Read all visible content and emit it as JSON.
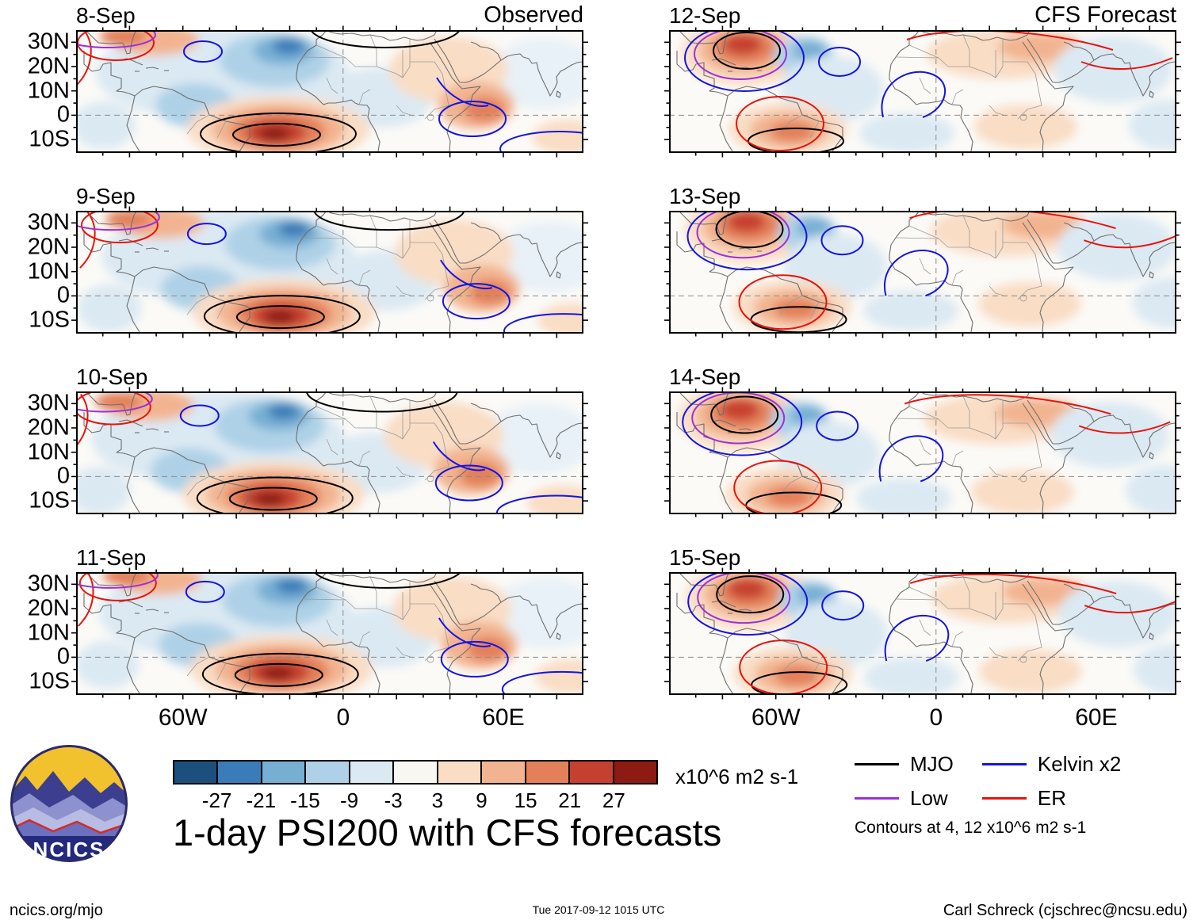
{
  "title": "1-day PSI200 with CFS forecasts",
  "columns": [
    {
      "title": "Observed",
      "panels": [
        {
          "date": "8-Sep"
        },
        {
          "date": "9-Sep"
        },
        {
          "date": "10-Sep"
        },
        {
          "date": "11-Sep"
        }
      ]
    },
    {
      "title": "CFS Forecast",
      "panels": [
        {
          "date": "12-Sep"
        },
        {
          "date": "13-Sep"
        },
        {
          "date": "14-Sep"
        },
        {
          "date": "15-Sep"
        }
      ]
    }
  ],
  "axes": {
    "y_ticks": [
      "30N",
      "20N",
      "10N",
      "0",
      "10S"
    ],
    "x_ticks": [
      "60W",
      "0",
      "60E"
    ]
  },
  "colorbar": {
    "tick_labels": [
      "-27",
      "-21",
      "-15",
      "-9",
      "-3",
      "3",
      "9",
      "15",
      "21",
      "27"
    ],
    "colors": [
      "#1d4f7c",
      "#3a7cb8",
      "#77afd3",
      "#aed1e7",
      "#dbe9f3",
      "#f9f7f2",
      "#f9ddc5",
      "#f2b490",
      "#e3805a",
      "#c6402f",
      "#8c1c13"
    ],
    "units": "x10^6 m2 s-1"
  },
  "legend": {
    "items": [
      {
        "label": "MJO",
        "color": "#000000"
      },
      {
        "label": "Low",
        "color": "#9b30d9"
      },
      {
        "label": "Kelvin x2",
        "color": "#1414e0"
      },
      {
        "label": "ER",
        "color": "#e8130c"
      }
    ],
    "note": "Contours at 4, 12 x10^6 m2 s-1"
  },
  "logo": {
    "text": "NCICS"
  },
  "footer": {
    "left": "ncics.org/mjo",
    "center": "Tue 2017-09-12 1015 UTC",
    "right": "Carl Schreck (cjschrec@ncsu.edu)"
  },
  "chart_data": {
    "type": "heatmap",
    "title": "1-day PSI200 with CFS forecasts",
    "layout": "2 columns x 4 rows of longitude-latitude map panels; left column observed, right column CFS forecast",
    "columns": [
      {
        "title": "Observed",
        "dates": [
          "8-Sep",
          "9-Sep",
          "10-Sep",
          "11-Sep"
        ]
      },
      {
        "title": "CFS Forecast",
        "dates": [
          "12-Sep",
          "13-Sep",
          "14-Sep",
          "15-Sep"
        ]
      }
    ],
    "x_axis": {
      "ticks": [
        "60W",
        "0",
        "60E"
      ],
      "approx_range_deg_lon": [
        -100,
        90
      ]
    },
    "y_axis": {
      "ticks": [
        "30N",
        "20N",
        "10N",
        "0",
        "10S"
      ],
      "approx_range_deg_lat": [
        -15,
        35
      ]
    },
    "fill_field": {
      "name": "PSI200 (200 hPa streamfunction) anomaly",
      "units": "x10^6 m2 s-1",
      "levels": [
        -27,
        -21,
        -15,
        -9,
        -3,
        3,
        9,
        15,
        21,
        27
      ],
      "palette": [
        "#1d4f7c",
        "#3a7cb8",
        "#77afd3",
        "#aed1e7",
        "#dbe9f3",
        "#f9f7f2",
        "#f9ddc5",
        "#f2b490",
        "#e3805a",
        "#c6402f",
        "#8c1c13"
      ]
    },
    "contour_overlays": [
      {
        "name": "MJO",
        "color": "black"
      },
      {
        "name": "Low",
        "color": "purple"
      },
      {
        "name": "Kelvin x2",
        "color": "blue"
      },
      {
        "name": "ER",
        "color": "red"
      }
    ],
    "contour_levels": "4, 12 x10^6 m2 s-1",
    "notable_features": [
      "Observed panels: strong positive (dark red) anomaly near 30W,5S with black MJO contours; broad negative (blue) anomalies over the tropical Atlantic 20-30N; weak positive anomalies over northeast Africa.",
      "Forecast panels: strong positive anomaly near 70W,28N ringed by black, purple and blue contours; positive anomaly near 55W,8S with red ER contours; red ER contours arcing across North Africa and Arabia."
    ]
  }
}
